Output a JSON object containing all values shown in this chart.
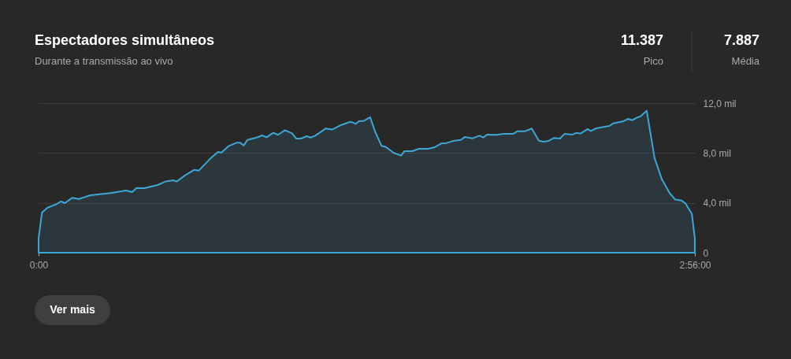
{
  "chart_data": {
    "type": "area",
    "title": "Espectadores simultâneos",
    "subtitle": "Durante a transmissão ao vivo",
    "annotations": [
      "11.387",
      "Pico",
      "7.887",
      "Média",
      "Ver mais"
    ],
    "x": [
      0,
      0.015,
      0.039,
      0.08,
      0.1,
      0.117,
      0.15,
      0.18,
      0.232,
      0.32,
      0.391,
      0.418,
      0.438,
      0.473,
      0.532,
      0.567,
      0.602,
      0.617,
      0.655,
      0.696,
      0.716,
      0.767,
      0.802,
      0.816,
      0.851,
      0.884,
      0.901,
      0.917,
      0.933,
      0.98,
      0.999,
      1.019,
      1.049,
      1.07,
      1.101,
      1.133,
      1.151,
      1.172,
      1.198,
      1.215,
      1.236,
      1.283,
      1.312,
      1.353,
      1.394,
      1.418,
      1.433,
      1.453,
      1.482,
      1.504,
      1.533,
      1.553,
      1.586,
      1.62,
      1.635,
      1.67,
      1.7,
      1.741,
      1.77,
      1.799,
      1.823,
      1.858,
      1.887,
      1.905,
      1.94,
      1.97,
      1.987,
      2.005,
      2.046,
      2.081,
      2.122,
      2.14,
      2.175,
      2.204,
      2.236,
      2.257,
      2.28,
      2.302,
      2.33,
      2.351,
      2.386,
      2.404,
      2.422,
      2.454,
      2.468,
      2.492,
      2.551,
      2.568,
      2.615,
      2.635,
      2.654,
      2.674,
      2.689,
      2.718,
      2.753,
      2.785,
      2.82,
      2.844,
      2.873,
      2.891,
      2.92,
      2.933
    ],
    "series": [
      {
        "color": "#3ea6d4",
        "values": [
          1.16,
          3.22,
          3.6,
          3.9,
          4.12,
          3.98,
          4.4,
          4.31,
          4.61,
          4.78,
          4.99,
          4.86,
          5.2,
          5.18,
          5.43,
          5.71,
          5.81,
          5.71,
          6.21,
          6.65,
          6.59,
          7.54,
          8.09,
          8.02,
          8.57,
          8.82,
          8.82,
          8.61,
          9.05,
          9.27,
          9.41,
          9.26,
          9.62,
          9.46,
          9.83,
          9.58,
          9.16,
          9.16,
          9.35,
          9.24,
          9.39,
          9.96,
          9.88,
          10.25,
          10.51,
          10.34,
          10.57,
          10.57,
          10.87,
          9.71,
          8.57,
          8.48,
          8.02,
          7.79,
          8.15,
          8.15,
          8.34,
          8.34,
          8.46,
          8.76,
          8.8,
          8.99,
          9.05,
          9.29,
          9.18,
          9.39,
          9.24,
          9.48,
          9.46,
          9.54,
          9.54,
          9.75,
          9.75,
          9.96,
          8.99,
          8.91,
          8.97,
          9.2,
          9.16,
          9.54,
          9.48,
          9.62,
          9.56,
          9.92,
          9.77,
          9.98,
          10.17,
          10.38,
          10.55,
          10.74,
          10.63,
          10.84,
          10.93,
          11.39,
          7.6,
          5.92,
          4.8,
          4.28,
          4.19,
          3.96,
          3.11,
          1.16
        ]
      }
    ],
    "xlim": [
      0,
      2.9333
    ],
    "xticks": [
      {
        "value": 0,
        "label": "0:00"
      },
      {
        "value": 2.9333,
        "label": "2:56:00"
      }
    ],
    "ylim": [
      0,
      12
    ],
    "yticks": [
      0,
      {
        "value": 4,
        "label": "4,0 mil"
      },
      {
        "value": 8,
        "label": "8,0 mil"
      },
      {
        "value": 12,
        "label": "12,0 mil"
      }
    ],
    "grid": "y"
  }
}
